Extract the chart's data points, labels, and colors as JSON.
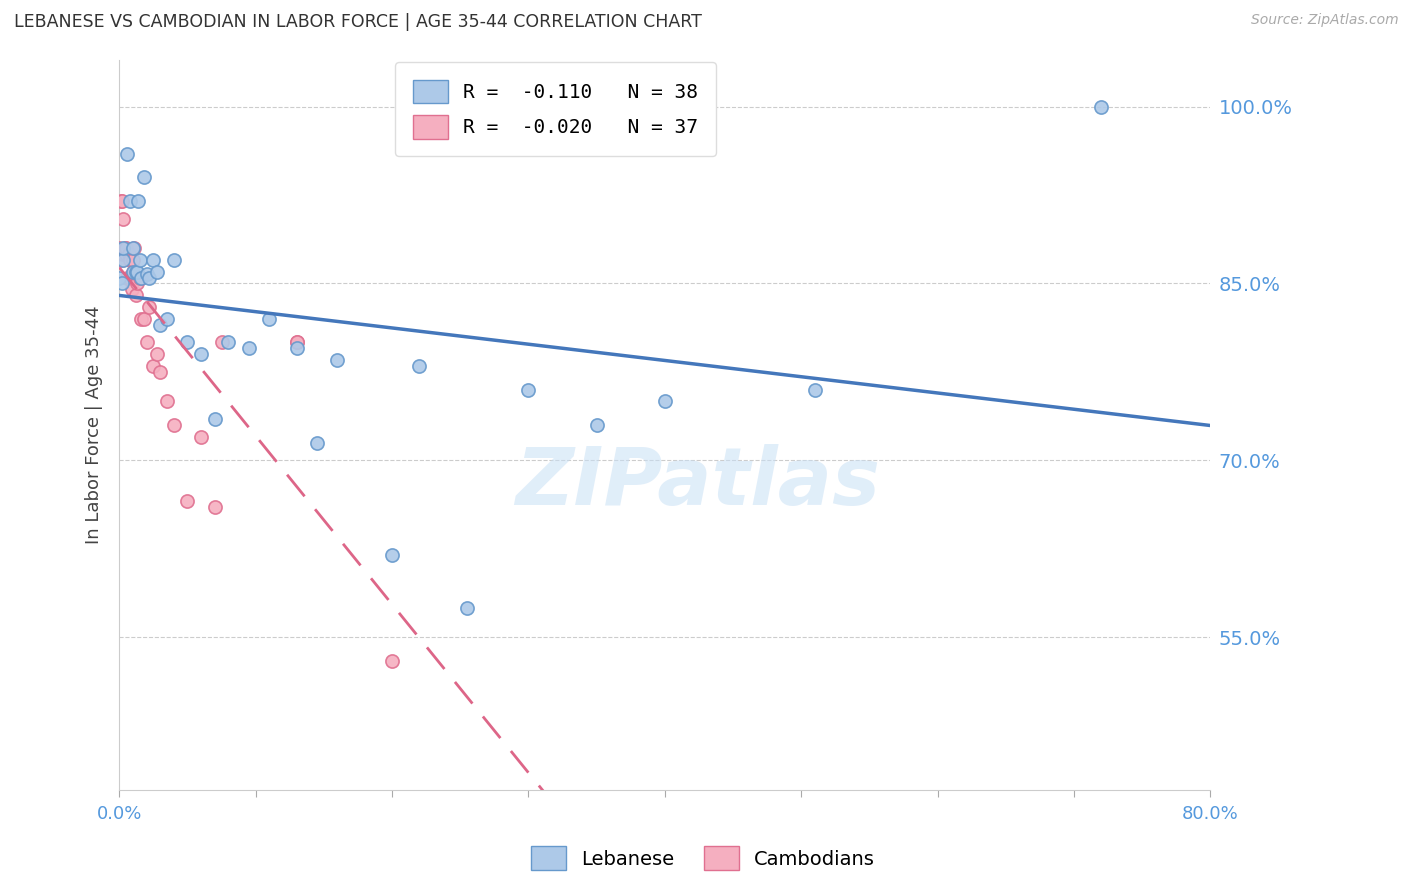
{
  "title": "LEBANESE VS CAMBODIAN IN LABOR FORCE | AGE 35-44 CORRELATION CHART",
  "source": "Source: ZipAtlas.com",
  "ylabel": "In Labor Force | Age 35-44",
  "watermark": "ZIPatlas",
  "legend_r_blue": "-0.110",
  "legend_n_blue": "38",
  "legend_r_pink": "-0.020",
  "legend_n_pink": "37",
  "xlim": [
    0.0,
    0.8
  ],
  "ylim": [
    0.42,
    1.04
  ],
  "yticks": [
    0.55,
    0.7,
    0.85,
    1.0
  ],
  "ytick_labels": [
    "55.0%",
    "70.0%",
    "85.0%",
    "100.0%"
  ],
  "xticks": [
    0.0,
    0.1,
    0.2,
    0.3,
    0.4,
    0.5,
    0.6,
    0.7,
    0.8
  ],
  "xtick_labels": [
    "0.0%",
    "",
    "",
    "",
    "",
    "",
    "",
    "",
    "80.0%"
  ],
  "blue_color": "#adc9e8",
  "pink_color": "#f5afc0",
  "blue_edge": "#6699cc",
  "pink_edge": "#e07090",
  "trend_blue": "#4477bb",
  "trend_pink": "#dd6688",
  "background": "#ffffff",
  "grid_color": "#cccccc",
  "axis_color": "#5599dd",
  "blue_x": [
    0.003,
    0.003,
    0.006,
    0.008,
    0.01,
    0.01,
    0.012,
    0.013,
    0.014,
    0.015,
    0.016,
    0.018,
    0.02,
    0.022,
    0.025,
    0.028,
    0.03,
    0.035,
    0.04,
    0.05,
    0.06,
    0.07,
    0.08,
    0.095,
    0.11,
    0.13,
    0.145,
    0.16,
    0.2,
    0.22,
    0.255,
    0.3,
    0.35,
    0.4,
    0.51,
    0.72,
    0.0,
    0.002
  ],
  "blue_y": [
    0.87,
    0.88,
    0.96,
    0.92,
    0.86,
    0.88,
    0.86,
    0.86,
    0.92,
    0.87,
    0.855,
    0.94,
    0.858,
    0.855,
    0.87,
    0.86,
    0.815,
    0.82,
    0.87,
    0.8,
    0.79,
    0.735,
    0.8,
    0.795,
    0.82,
    0.795,
    0.715,
    0.785,
    0.62,
    0.78,
    0.575,
    0.76,
    0.73,
    0.75,
    0.76,
    1.0,
    0.855,
    0.85
  ],
  "pink_x": [
    0.0,
    0.0,
    0.002,
    0.003,
    0.004,
    0.005,
    0.005,
    0.006,
    0.007,
    0.008,
    0.008,
    0.009,
    0.01,
    0.01,
    0.011,
    0.012,
    0.013,
    0.015,
    0.016,
    0.018,
    0.02,
    0.022,
    0.025,
    0.028,
    0.03,
    0.035,
    0.04,
    0.05,
    0.06,
    0.07,
    0.075,
    0.13,
    0.001,
    0.002,
    0.003,
    0.2,
    0.13
  ],
  "pink_y": [
    0.875,
    0.88,
    0.87,
    0.875,
    0.88,
    0.875,
    0.88,
    0.855,
    0.875,
    0.855,
    0.87,
    0.845,
    0.86,
    0.87,
    0.88,
    0.84,
    0.85,
    0.855,
    0.82,
    0.82,
    0.8,
    0.83,
    0.78,
    0.79,
    0.775,
    0.75,
    0.73,
    0.665,
    0.72,
    0.66,
    0.8,
    0.8,
    0.92,
    0.92,
    0.905,
    0.53,
    0.8
  ],
  "marker_size": 90
}
